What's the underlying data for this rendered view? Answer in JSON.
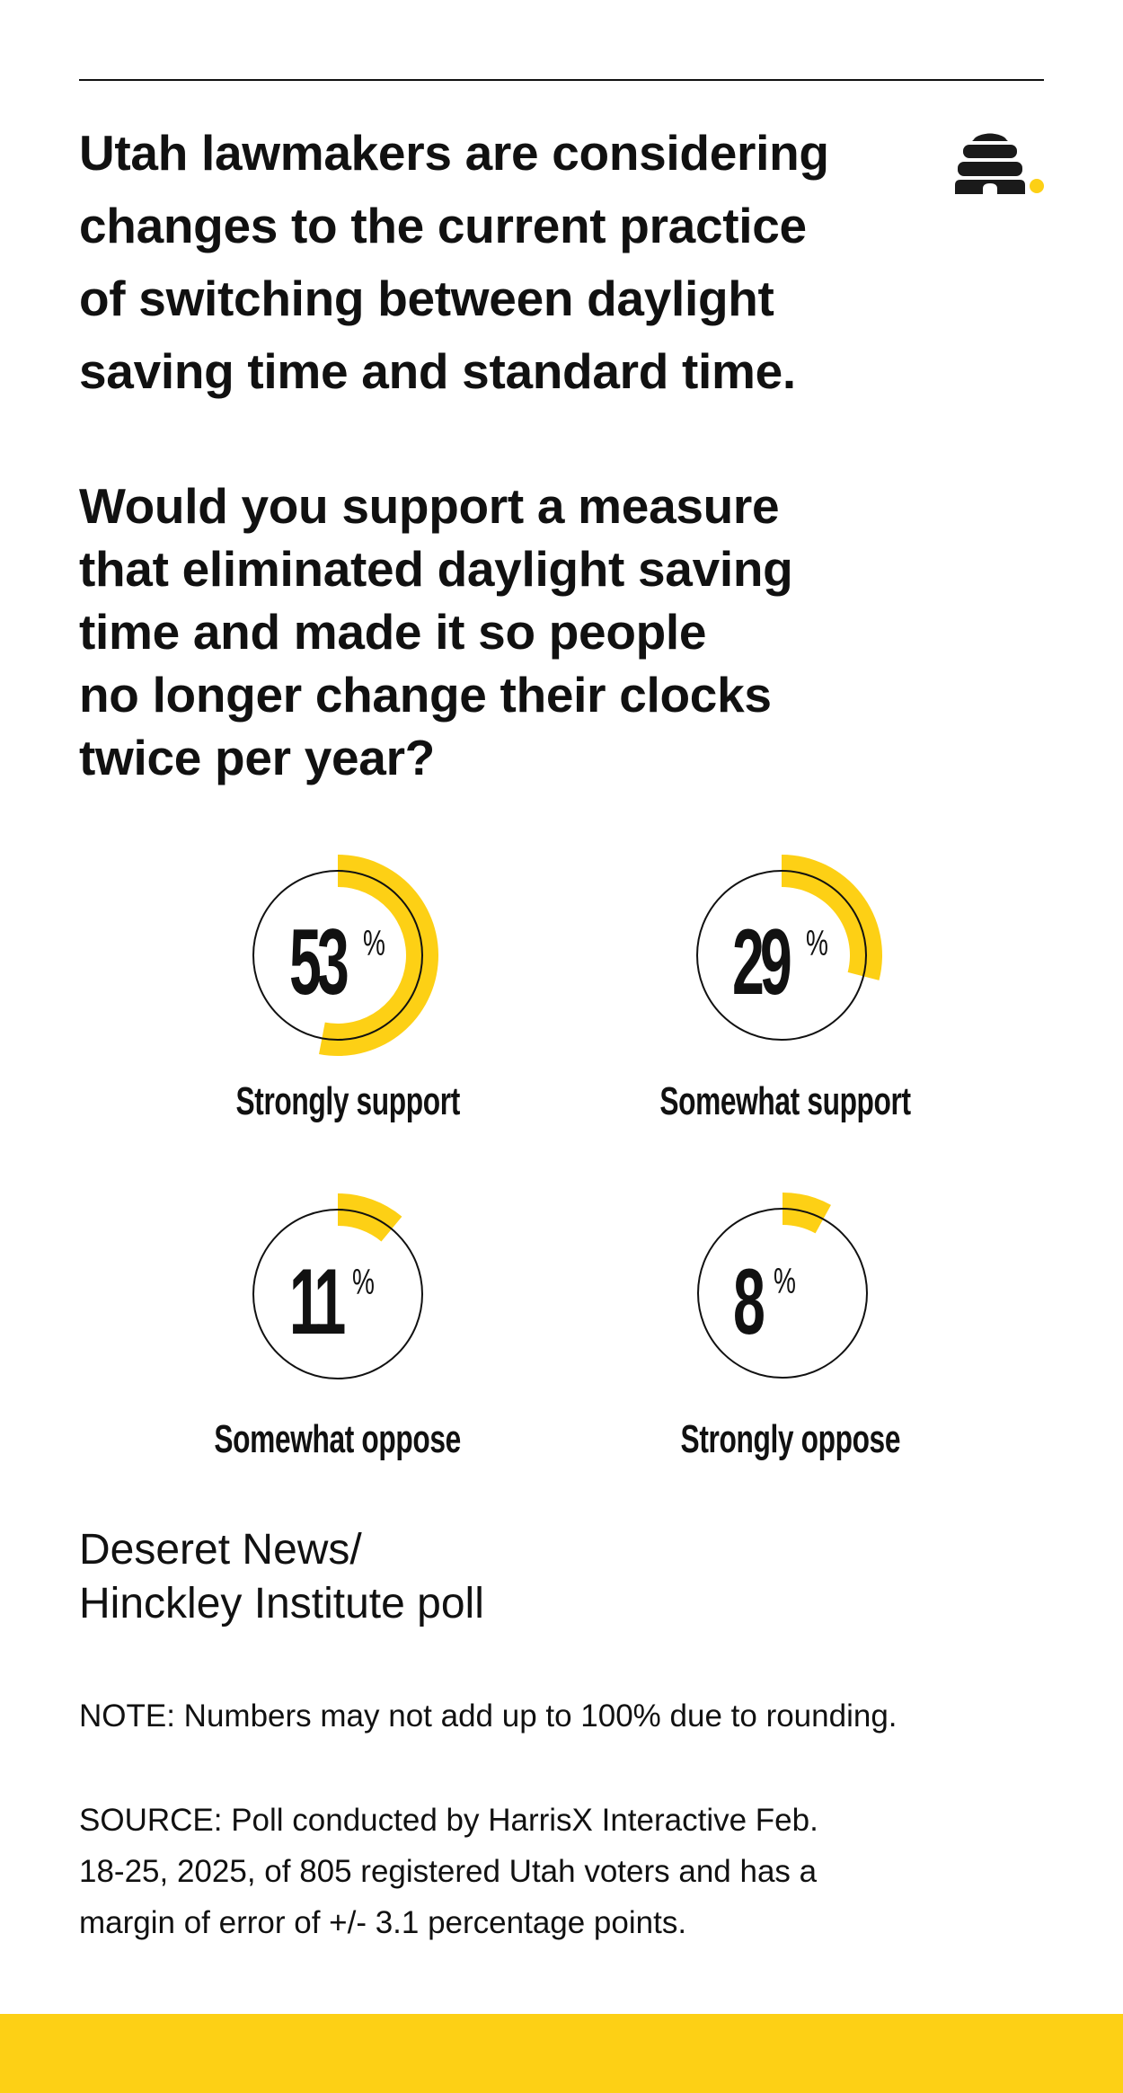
{
  "header": {
    "intro_lines": [
      "Utah lawmakers are considering",
      "changes to the current practice",
      "of switching between daylight",
      "saving time and standard time."
    ],
    "question_lines": [
      "Would you support a measure",
      "that eliminated daylight saving",
      "time and made it so people",
      "no longer change their clocks",
      "twice per year?"
    ],
    "logo": "beehive-icon"
  },
  "colors": {
    "accent": "#FDD015",
    "text": "#111111",
    "background": "#FFFFFF"
  },
  "results": [
    {
      "value": "53",
      "unit": "%",
      "label": "Strongly support"
    },
    {
      "value": "29",
      "unit": "%",
      "label": "Somewhat support"
    },
    {
      "value": "11",
      "unit": "%",
      "label": "Somewhat oppose"
    },
    {
      "value": "8",
      "unit": "%",
      "label": "Strongly oppose"
    }
  ],
  "footer": {
    "credit_lines": [
      "Deseret News/",
      "Hinckley Institute poll"
    ],
    "note": "NOTE: Numbers may not add up to 100% due to rounding.",
    "source_lines": [
      "SOURCE: Poll conducted by HarrisX Interactive Feb.",
      "18-25, 2025, of 805 registered Utah voters and has a",
      "margin of error of +/- 3.1 percentage points."
    ]
  },
  "chart_data": {
    "type": "pie",
    "title": "Would you support a measure that eliminated daylight saving time and made it so people no longer change their clocks twice per year?",
    "categories": [
      "Strongly support",
      "Somewhat support",
      "Somewhat oppose",
      "Strongly oppose"
    ],
    "values": [
      53,
      29,
      11,
      8
    ],
    "unit": "%",
    "style": "individual radial progress rings, arc starting at 12 o'clock clockwise",
    "source": "Deseret News/Hinckley Institute poll",
    "note": "Numbers may not add up to 100% due to rounding."
  }
}
